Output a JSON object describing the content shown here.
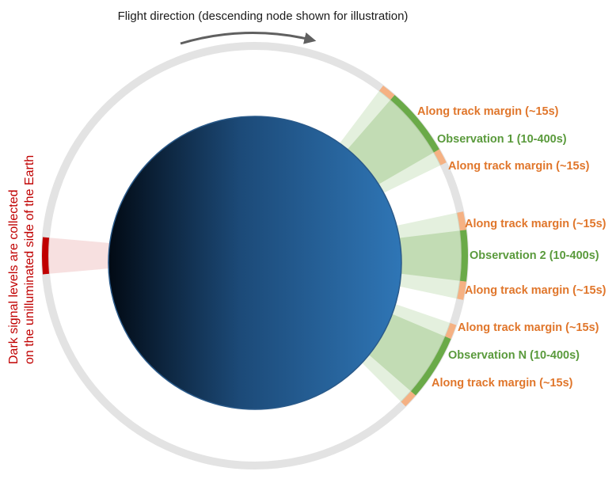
{
  "title": "Flight direction (descending node shown for illustration)",
  "dark_signal": {
    "line1": "Dark signal levels are collected",
    "line2": "on the unilluminated side of the Earth"
  },
  "observations": [
    {
      "margin_before": "Along track margin (~15s)",
      "label": "Observation 1 (10-400s)",
      "margin_after": "Along track margin (~15s)"
    },
    {
      "margin_before": "Along track margin (~15s)",
      "label": "Observation 2 (10-400s)",
      "margin_after": "Along track margin (~15s)"
    },
    {
      "margin_before": "Along track margin (~15s)",
      "label": "Observation N (10-400s)",
      "margin_after": "Along track margin (~15s)"
    }
  ],
  "colors": {
    "orbit": "#e3e3e3",
    "earth_dark": "#020a14",
    "earth_light": "#2f76b6",
    "observation": "#6aaa48",
    "margin": "#f5b183",
    "dark_signal": "#c00000",
    "arrow": "#606060"
  }
}
